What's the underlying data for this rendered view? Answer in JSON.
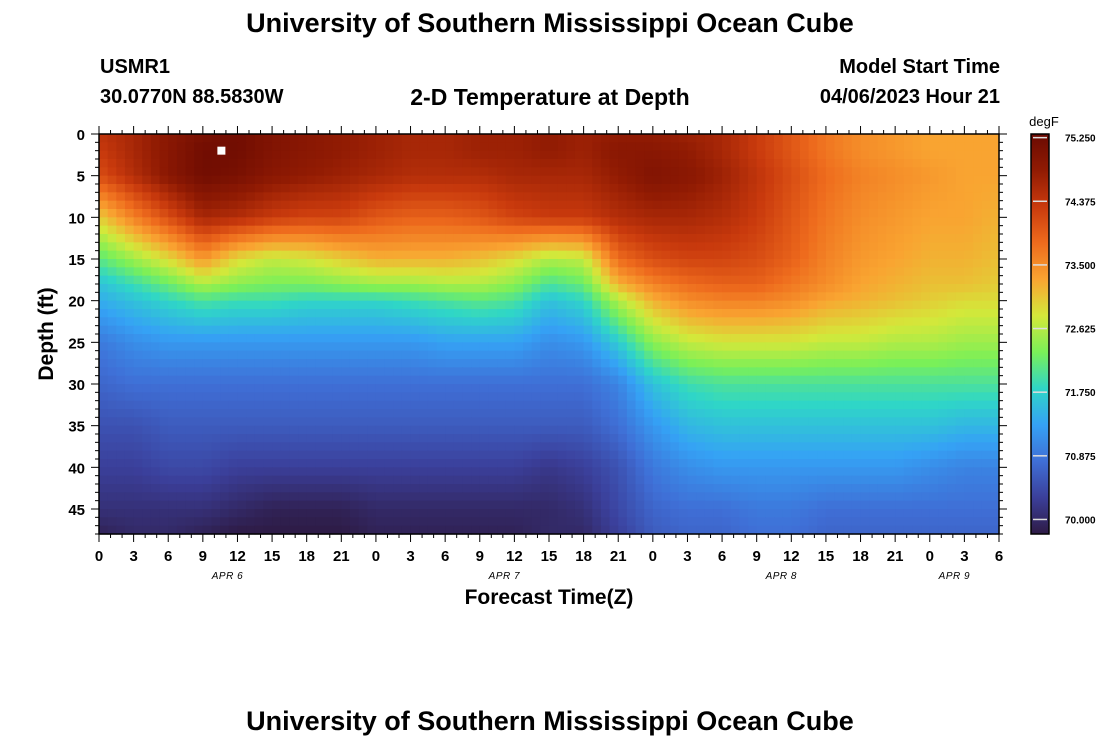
{
  "header": {
    "title": "University of Southern Mississippi Ocean Cube",
    "station_id": "USMR1",
    "coordinates": "30.0770N  88.5830W",
    "plot_title": "2-D Temperature at Depth",
    "start_time_label": "Model Start Time",
    "start_time_value": "04/06/2023 Hour 21"
  },
  "footer": {
    "title": "University of Southern Mississippi Ocean Cube"
  },
  "chart_data": {
    "type": "heatmap",
    "title": "2-D Temperature at Depth",
    "xlabel": "Forecast Time(Z)",
    "ylabel": "Depth (ft)",
    "x_hours": [
      0,
      3,
      6,
      9,
      12,
      15,
      18,
      21,
      24,
      27,
      30,
      33,
      36,
      39,
      42,
      45,
      48,
      51,
      54,
      57,
      60,
      63,
      66,
      69,
      72,
      75,
      78
    ],
    "x_tick_labels": [
      "0",
      "3",
      "6",
      "9",
      "12",
      "15",
      "18",
      "21",
      "0",
      "3",
      "6",
      "9",
      "12",
      "15",
      "18",
      "21",
      "0",
      "3",
      "6",
      "9",
      "12",
      "15",
      "18",
      "21",
      "0",
      "3",
      "6"
    ],
    "date_labels": [
      {
        "hour": 12,
        "label": "APR 6"
      },
      {
        "hour": 36,
        "label": "APR 7"
      },
      {
        "hour": 60,
        "label": "APR 8"
      },
      {
        "hour": 75,
        "label": "APR 9"
      }
    ],
    "y_ticks": [
      0,
      5,
      10,
      15,
      20,
      25,
      30,
      35,
      40,
      45
    ],
    "ylim": [
      0,
      48
    ],
    "xlim": [
      0,
      78
    ],
    "colorbar": {
      "unit": "degF",
      "ticks": [
        "75.250",
        "74.375",
        "73.500",
        "72.625",
        "71.750",
        "70.875",
        "70.000"
      ],
      "tick_values": [
        75.25,
        74.375,
        73.5,
        72.625,
        71.75,
        70.875,
        70.0
      ],
      "range": [
        69.8,
        75.3
      ],
      "colors": [
        "#2e1b45",
        "#3b3f9a",
        "#3f6fd6",
        "#35a2f5",
        "#2fd6c7",
        "#7af058",
        "#d4e83a",
        "#f9a431",
        "#ee6b1d",
        "#c93a0d",
        "#911b03",
        "#6a0a02"
      ]
    },
    "marker": {
      "hour": 10,
      "depth": 2
    },
    "depths": [
      0,
      2,
      5,
      10,
      15,
      18,
      20,
      25,
      30,
      35,
      40,
      45,
      48
    ],
    "hours": [
      0,
      3,
      6,
      9,
      12,
      15,
      18,
      21,
      24,
      27,
      30,
      33,
      36,
      39,
      42,
      45,
      48,
      51,
      54,
      57,
      60,
      63,
      66,
      69,
      72,
      75,
      78
    ],
    "temperature": [
      [
        74.4,
        74.6,
        74.9,
        75.1,
        75.2,
        75.0,
        74.9,
        74.8,
        74.7,
        74.6,
        74.6,
        74.7,
        74.7,
        74.8,
        74.7,
        74.8,
        74.8,
        74.7,
        74.6,
        74.3,
        74.0,
        73.7,
        73.5,
        73.4,
        73.3,
        73.3,
        73.3
      ],
      [
        74.3,
        74.6,
        74.9,
        75.2,
        75.2,
        75.0,
        74.9,
        74.8,
        74.7,
        74.6,
        74.6,
        74.7,
        74.7,
        74.8,
        74.7,
        74.9,
        74.9,
        74.8,
        74.6,
        74.3,
        74.0,
        73.7,
        73.5,
        73.4,
        73.3,
        73.3,
        73.3
      ],
      [
        74.1,
        74.5,
        74.9,
        75.2,
        75.1,
        74.9,
        74.8,
        74.7,
        74.6,
        74.5,
        74.5,
        74.5,
        74.6,
        74.6,
        74.6,
        74.8,
        75.0,
        74.9,
        74.7,
        74.4,
        74.1,
        73.8,
        73.6,
        73.5,
        73.4,
        73.3,
        73.3
      ],
      [
        73.0,
        73.6,
        74.1,
        74.6,
        74.5,
        74.3,
        74.2,
        74.2,
        74.0,
        73.9,
        73.9,
        74.0,
        74.2,
        74.3,
        74.3,
        74.5,
        74.6,
        74.6,
        74.5,
        74.3,
        74.0,
        73.7,
        73.5,
        73.4,
        73.3,
        73.3,
        73.2
      ],
      [
        72.1,
        72.5,
        72.9,
        73.4,
        72.9,
        72.7,
        72.8,
        73.0,
        73.2,
        73.2,
        73.2,
        73.1,
        72.9,
        72.6,
        72.7,
        73.8,
        74.1,
        74.2,
        74.2,
        74.1,
        73.9,
        73.6,
        73.4,
        73.3,
        73.2,
        73.2,
        73.1
      ],
      [
        71.6,
        71.9,
        72.2,
        72.6,
        72.4,
        72.3,
        72.3,
        72.4,
        72.5,
        72.5,
        72.6,
        72.6,
        72.4,
        72.0,
        72.2,
        73.2,
        73.6,
        73.8,
        73.9,
        73.9,
        73.7,
        73.5,
        73.3,
        73.2,
        73.1,
        73.1,
        73.0
      ],
      [
        71.4,
        71.6,
        71.8,
        72.0,
        71.9,
        71.9,
        71.8,
        71.8,
        71.8,
        71.9,
        72.0,
        72.1,
        72.0,
        71.6,
        71.8,
        72.6,
        73.2,
        73.5,
        73.6,
        73.6,
        73.5,
        73.3,
        73.2,
        73.1,
        73.0,
        72.9,
        72.9
      ],
      [
        70.9,
        71.1,
        71.2,
        71.2,
        71.2,
        71.2,
        71.2,
        71.2,
        71.2,
        71.2,
        71.3,
        71.3,
        71.3,
        71.1,
        71.2,
        71.7,
        72.4,
        72.7,
        72.8,
        72.8,
        72.8,
        72.7,
        72.7,
        72.6,
        72.6,
        72.5,
        72.5
      ],
      [
        70.7,
        70.8,
        70.8,
        70.8,
        70.8,
        70.8,
        70.8,
        70.8,
        70.8,
        70.8,
        70.8,
        70.8,
        70.8,
        70.8,
        70.8,
        71.0,
        71.6,
        71.9,
        72.0,
        72.0,
        72.0,
        72.0,
        72.0,
        72.0,
        72.0,
        72.0,
        72.0
      ],
      [
        70.5,
        70.5,
        70.6,
        70.6,
        70.6,
        70.6,
        70.6,
        70.6,
        70.6,
        70.6,
        70.6,
        70.6,
        70.6,
        70.6,
        70.6,
        70.8,
        71.2,
        71.5,
        71.6,
        71.6,
        71.6,
        71.6,
        71.6,
        71.6,
        71.6,
        71.5,
        71.5
      ],
      [
        70.3,
        70.3,
        70.4,
        70.4,
        70.3,
        70.3,
        70.3,
        70.3,
        70.3,
        70.3,
        70.3,
        70.3,
        70.3,
        70.2,
        70.3,
        70.5,
        70.9,
        71.1,
        71.2,
        71.2,
        71.2,
        71.2,
        71.2,
        71.2,
        71.1,
        71.0,
        71.0
      ],
      [
        70.1,
        70.1,
        70.1,
        70.1,
        70.0,
        69.9,
        69.9,
        69.9,
        70.0,
        70.0,
        70.0,
        70.0,
        70.0,
        70.0,
        70.1,
        70.4,
        70.7,
        70.8,
        70.8,
        70.9,
        70.9,
        70.8,
        70.8,
        70.8,
        70.8,
        70.8,
        70.8
      ],
      [
        69.9,
        70.0,
        70.0,
        69.9,
        69.8,
        69.8,
        69.8,
        69.8,
        69.9,
        69.9,
        69.9,
        69.9,
        69.9,
        70.0,
        70.0,
        70.3,
        70.6,
        70.7,
        70.7,
        70.8,
        70.8,
        70.7,
        70.7,
        70.7,
        70.7,
        70.7,
        70.7
      ]
    ]
  }
}
